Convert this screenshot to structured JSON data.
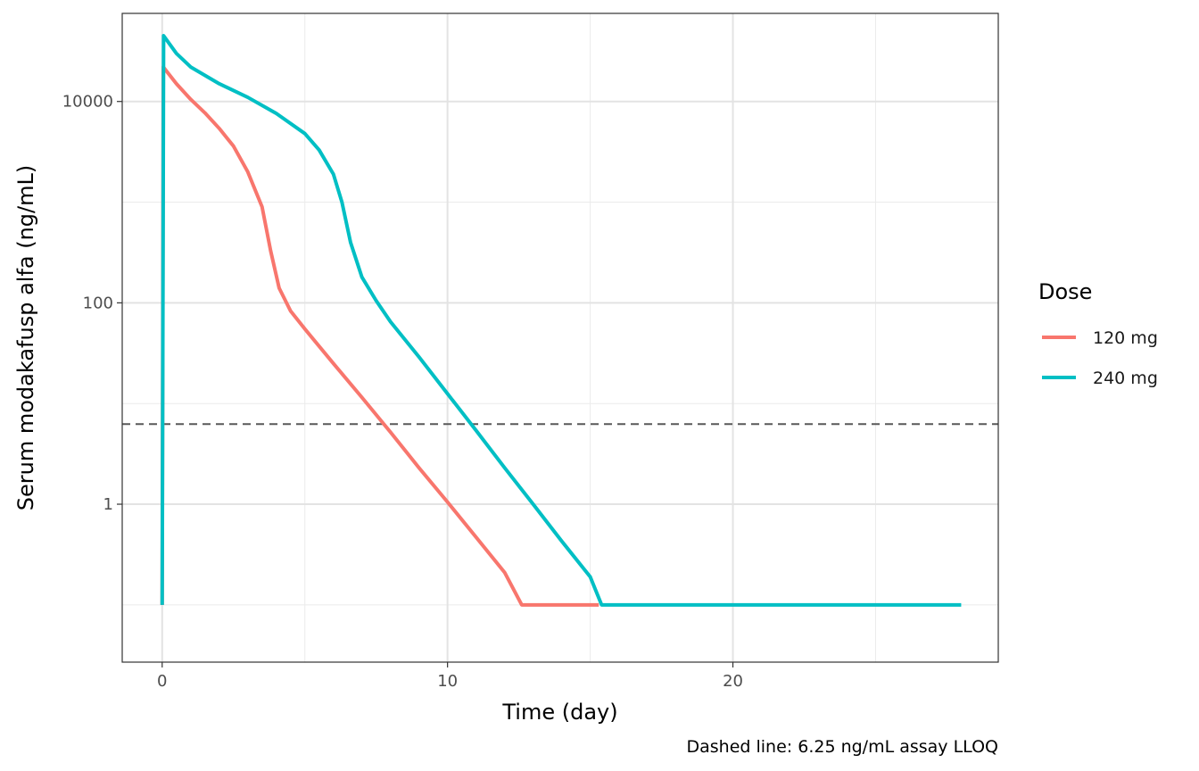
{
  "chart_data": {
    "type": "line",
    "xlabel": "Time (day)",
    "ylabel": "Serum modakafusp alfa (ng/mL)",
    "caption": "Dashed line: 6.25 ng/mL assay LLOQ",
    "y_scale": "log10",
    "xlim": [
      -1.4,
      29.3
    ],
    "ylim": [
      0.027,
      75000
    ],
    "x_ticks": [
      0,
      10,
      20
    ],
    "x_tick_labels": [
      "0",
      "10",
      "20"
    ],
    "y_ticks": [
      1,
      100,
      10000
    ],
    "y_tick_labels": [
      "1",
      "100",
      "10000"
    ],
    "grid": true,
    "reference_line": {
      "y": 6.25,
      "style": "dashed",
      "color": "#595959"
    },
    "legend": {
      "title": "Dose",
      "position": "right"
    },
    "series": [
      {
        "name": "120 mg",
        "color": "#F8766D",
        "points": [
          [
            0,
            0.1
          ],
          [
            0.04,
            22000
          ],
          [
            0.5,
            15000
          ],
          [
            1,
            10500
          ],
          [
            1.5,
            7700
          ],
          [
            2,
            5400
          ],
          [
            2.5,
            3600
          ],
          [
            3,
            2000
          ],
          [
            3.5,
            900
          ],
          [
            3.8,
            330
          ],
          [
            4.1,
            140
          ],
          [
            4.5,
            83
          ],
          [
            5,
            55
          ],
          [
            6,
            25
          ],
          [
            7,
            11.5
          ],
          [
            8,
            5.2
          ],
          [
            9,
            2.3
          ],
          [
            10,
            1.05
          ],
          [
            11,
            0.47
          ],
          [
            12,
            0.21
          ],
          [
            12.6,
            0.1
          ],
          [
            15.3,
            0.1
          ]
        ]
      },
      {
        "name": "240 mg",
        "color": "#00BFC4",
        "points": [
          [
            0,
            0.1
          ],
          [
            0.05,
            45000
          ],
          [
            0.5,
            30000
          ],
          [
            1,
            22000
          ],
          [
            2,
            15000
          ],
          [
            3,
            11000
          ],
          [
            4,
            7600
          ],
          [
            5,
            4800
          ],
          [
            5.5,
            3300
          ],
          [
            6,
            1900
          ],
          [
            6.3,
            1000
          ],
          [
            6.6,
            400
          ],
          [
            7,
            180
          ],
          [
            7.5,
            105
          ],
          [
            8,
            65
          ],
          [
            9,
            29
          ],
          [
            10,
            12.5
          ],
          [
            11,
            5.4
          ],
          [
            12,
            2.3
          ],
          [
            13,
            1.0
          ],
          [
            14,
            0.43
          ],
          [
            15,
            0.19
          ],
          [
            15.4,
            0.1
          ],
          [
            28,
            0.1
          ]
        ]
      }
    ]
  }
}
